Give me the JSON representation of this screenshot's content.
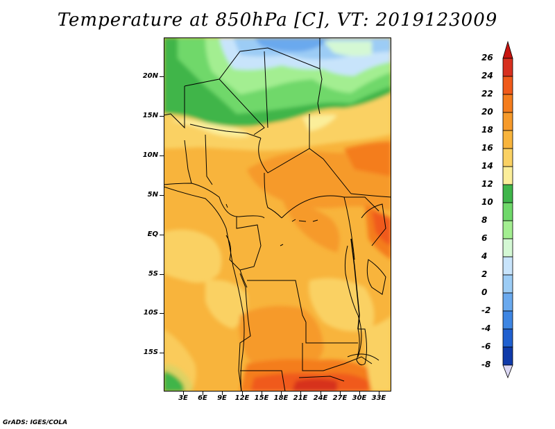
{
  "title": "Temperature at 850hPa [C], VT: 2019123009",
  "credit": "GrADS: IGES/COLA",
  "lat_labels": [
    "20N",
    "15N",
    "10N",
    "5N",
    "EQ",
    "5S",
    "10S",
    "15S"
  ],
  "lon_labels": [
    "3E",
    "6E",
    "9E",
    "12E",
    "15E",
    "18E",
    "21E",
    "24E",
    "27E",
    "30E",
    "33E"
  ],
  "colorbar": {
    "labels": [
      "26",
      "24",
      "22",
      "20",
      "18",
      "16",
      "14",
      "12",
      "10",
      "8",
      "6",
      "4",
      "2",
      "0",
      "-2",
      "-4",
      "-6",
      "-8"
    ],
    "colors": [
      "#d7301f",
      "#f05a1a",
      "#f47d1d",
      "#f69a2a",
      "#f8b43c",
      "#fad163",
      "#fbee9a",
      "#3fb54a",
      "#6fd86a",
      "#a3ee91",
      "#d4f8d4",
      "#c8e4fb",
      "#9cccf5",
      "#6aa9ee",
      "#3e86e3",
      "#2060cf",
      "#0f3aa9",
      "#051a6b"
    ]
  }
}
